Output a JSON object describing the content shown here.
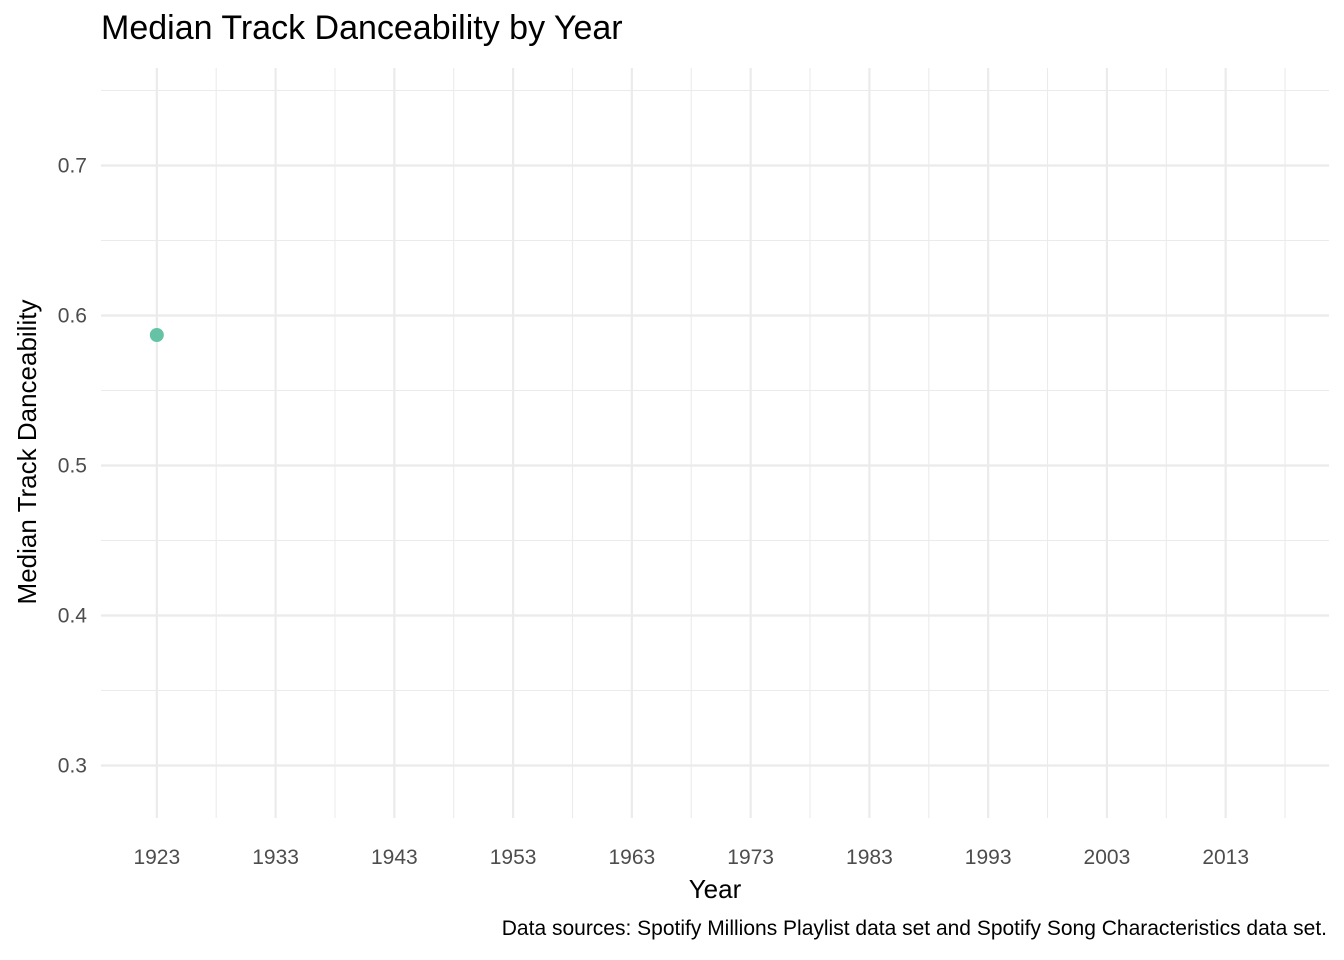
{
  "chart_data": {
    "type": "scatter",
    "title": "Median Track Danceability by Year",
    "xlabel": "Year",
    "ylabel": "Median Track Danceability",
    "caption": "Data sources: Spotify Millions Playlist data set and Spotify Song Characteristics data set.",
    "xlim": [
      1918.3,
      2021.7
    ],
    "ylim": [
      0.265,
      0.765
    ],
    "x_ticks": [
      1923,
      1933,
      1943,
      1953,
      1963,
      1973,
      1983,
      1993,
      2003,
      2013
    ],
    "x_minor_ticks": [
      1928,
      1938,
      1948,
      1958,
      1968,
      1978,
      1988,
      1998,
      2008,
      2018
    ],
    "y_ticks": [
      0.3,
      0.4,
      0.5,
      0.6,
      0.7
    ],
    "y_tick_labels": [
      "0.3",
      "0.4",
      "0.5",
      "0.6",
      "0.7"
    ],
    "y_minor_ticks": [
      0.35,
      0.45,
      0.55,
      0.65,
      0.75
    ],
    "grid": true,
    "point_color": "#66c2a5",
    "points": [
      {
        "x": 1923,
        "y": 0.587
      }
    ]
  }
}
